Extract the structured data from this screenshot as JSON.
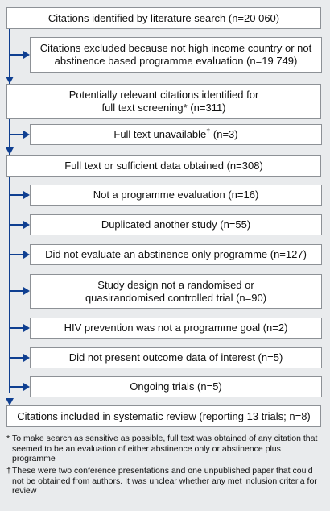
{
  "flow": {
    "main": {
      "identified": "Citations identified by literature search (n=20 060)",
      "potentially_relevant": "Potentially relevant citations identified for full text screening* (n=311)",
      "obtained": "Full text or sufficient data obtained (n=308)",
      "included": "Citations included in systematic review (reporting 13 trials; n=8)"
    },
    "excluded_search": "Citations excluded because not high income country or not abstinence based programme evaluation (n=19 749)",
    "unavailable": {
      "text": "Full text unavailable",
      "mark": "†",
      "count": " (n=3)"
    },
    "exclusions": [
      "Not a programme evaluation (n=16)",
      "Duplicated another study (n=55)",
      "Did not evaluate an abstinence only programme (n=127)",
      "Study design not a randomised or quasirandomised controlled trial (n=90)",
      "HIV prevention was not a programme goal (n=2)",
      "Did not present outcome data of interest (n=5)",
      "Ongoing trials (n=5)"
    ]
  },
  "footnotes": [
    {
      "mark": "*",
      "text": "To make search as sensitive as possible, full text was obtained of any citation that seemed to be an evaluation of either abstinence only or abstinence plus programme"
    },
    {
      "mark": "†",
      "text": "These were two conference presentations and one unpublished paper that could not be obtained from authors. It was unclear whether any met inclusion criteria for review"
    }
  ],
  "colors": {
    "arrow": "#0f3f91",
    "background": "#e9ebed",
    "box": "#ffffff"
  }
}
